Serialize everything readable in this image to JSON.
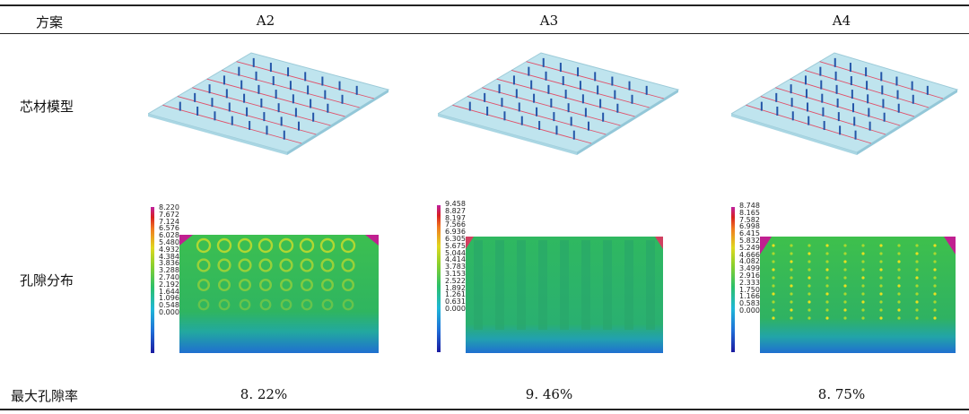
{
  "header": {
    "scheme_label": "方案",
    "columns": [
      "A2",
      "A3",
      "A4"
    ]
  },
  "rows": {
    "core_model_label": "芯材模型",
    "pore_distribution_label": "孔隙分布",
    "max_porosity_label": "最大孔隙率"
  },
  "max_porosity": [
    "8. 22%",
    "9. 46%",
    "8. 75%"
  ],
  "colorbars": [
    [
      "8.220",
      "7.672",
      "7.124",
      "6.576",
      "6.028",
      "5.480",
      "4.932",
      "4.384",
      "3.836",
      "3.288",
      "2.740",
      "2.192",
      "1.644",
      "1.096",
      "0.548",
      "0.000"
    ],
    [
      "9.458",
      "8.827",
      "8.197",
      "7.566",
      "6.936",
      "6.305",
      "5.675",
      "5.044",
      "4.414",
      "3.783",
      "3.153",
      "2.522",
      "1.892",
      "1.261",
      "0.631",
      "0.000"
    ],
    [
      "8.748",
      "8.165",
      "7.582",
      "6.998",
      "6.415",
      "5.832",
      "5.249",
      "4.666",
      "4.082",
      "3.499",
      "2.916",
      "2.333",
      "1.750",
      "1.166",
      "0.583",
      "0.000"
    ]
  ],
  "colors": {
    "plate_fill": "#bfe4ee",
    "plate_edge": "#9ccad8",
    "pin_blue": "#2456a8",
    "line_red": "#e0506a",
    "field_green": "#2cb85c",
    "field_blue": "#2277cc"
  }
}
